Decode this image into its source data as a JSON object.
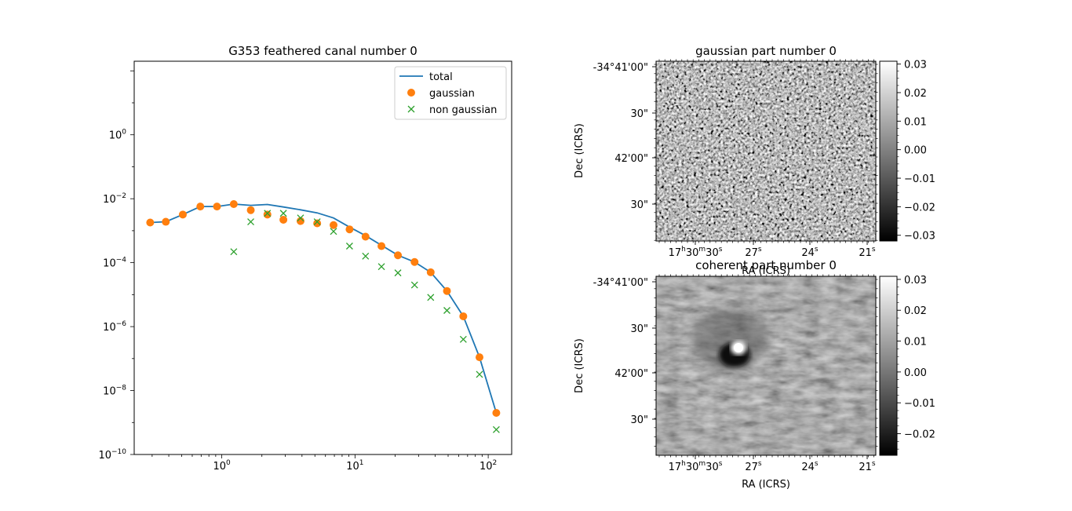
{
  "chart_data": [
    {
      "type": "line",
      "title": "G353 feathered canal number 0",
      "xlabel": "",
      "ylabel": "",
      "xscale": "log",
      "yscale": "log",
      "xlim": [
        0.22,
        150
      ],
      "ylim": [
        1e-10,
        200
      ],
      "x_ticks": [
        {
          "value": 1,
          "base": "10",
          "exp": "0"
        },
        {
          "value": 10,
          "base": "10",
          "exp": "1"
        },
        {
          "value": 100,
          "base": "10",
          "exp": "2"
        }
      ],
      "y_ticks": [
        {
          "value": 1,
          "base": "10",
          "exp": "0"
        },
        {
          "value": 0.01,
          "base": "10",
          "exp": "−2"
        },
        {
          "value": 0.0001,
          "base": "10",
          "exp": "−4"
        },
        {
          "value": 1e-06,
          "base": "10",
          "exp": "−6"
        },
        {
          "value": 1e-08,
          "base": "10",
          "exp": "−8"
        },
        {
          "value": 1e-10,
          "base": "10",
          "exp": "−10"
        }
      ],
      "legend_position": "top-right",
      "series": [
        {
          "name": "total",
          "style": "line",
          "color": "#1f77b4",
          "x": [
            0.29,
            0.38,
            0.51,
            0.69,
            0.92,
            1.23,
            1.65,
            2.2,
            2.9,
            3.9,
            5.2,
            6.9,
            9.1,
            12.0,
            15.8,
            21.0,
            28.0,
            37.0,
            49.0,
            65.0,
            86.0,
            115.0
          ],
          "y": [
            0.0018,
            0.0019,
            0.0032,
            0.0057,
            0.0057,
            0.0068,
            0.0062,
            0.0066,
            0.0055,
            0.0045,
            0.0036,
            0.0025,
            0.0013,
            0.0007,
            0.00035,
            0.00017,
            0.000105,
            5e-05,
            1.3e-05,
            2.1e-06,
            1.1e-07,
            2e-09
          ]
        },
        {
          "name": "gaussian",
          "style": "marker-o",
          "color": "#ff7f0e",
          "x": [
            0.29,
            0.38,
            0.51,
            0.69,
            0.92,
            1.23,
            1.65,
            2.2,
            2.9,
            3.9,
            5.2,
            6.9,
            9.1,
            12.0,
            15.8,
            21.0,
            28.0,
            37.0,
            49.0,
            65.0,
            86.0,
            115.0
          ],
          "y": [
            0.0018,
            0.0019,
            0.0032,
            0.0057,
            0.0057,
            0.0068,
            0.0044,
            0.0032,
            0.0022,
            0.002,
            0.0017,
            0.0015,
            0.0011,
            0.00065,
            0.00033,
            0.00017,
            0.000105,
            5e-05,
            1.3e-05,
            2.1e-06,
            1.1e-07,
            2e-09
          ]
        },
        {
          "name": "non gaussian",
          "style": "marker-x",
          "color": "#2ca02c",
          "x": [
            1.23,
            1.65,
            2.2,
            2.9,
            3.9,
            5.2,
            6.9,
            9.1,
            12.0,
            15.8,
            21.0,
            28.0,
            37.0,
            49.0,
            65.0,
            86.0,
            115.0
          ],
          "y": [
            0.00022,
            0.0019,
            0.0035,
            0.0035,
            0.0025,
            0.0019,
            0.00095,
            0.00033,
            0.00016,
            7.5e-05,
            4.8e-05,
            2e-05,
            8.2e-06,
            3.2e-06,
            4e-07,
            3.2e-08,
            6e-10
          ]
        }
      ]
    },
    {
      "type": "heatmap",
      "title": "gaussian part number 0",
      "xlabel": "RA (ICRS)",
      "ylabel": "Dec (ICRS)",
      "x_ticks": [
        {
          "h": "17",
          "m": "30",
          "s": "30"
        },
        {
          "s": "27"
        },
        {
          "s": "24"
        },
        {
          "s": "21"
        }
      ],
      "y_ticks": [
        "-34°41'00\"",
        "30\"",
        "42'00\"",
        "30\""
      ],
      "colormap": "gray",
      "colorbar_ticks": [
        "0.03",
        "0.02",
        "0.01",
        "0.00",
        "−0.01",
        "−0.02",
        "−0.03"
      ],
      "colorbar_range": [
        -0.032,
        0.031
      ]
    },
    {
      "type": "heatmap",
      "title": "coherent part number 0",
      "xlabel": "RA (ICRS)",
      "ylabel": "Dec (ICRS)",
      "x_ticks": [
        {
          "h": "17",
          "m": "30",
          "s": "30"
        },
        {
          "s": "27"
        },
        {
          "s": "24"
        },
        {
          "s": "21"
        }
      ],
      "y_ticks": [
        "-34°41'00\"",
        "30\"",
        "42'00\"",
        "30\""
      ],
      "colormap": "gray",
      "colorbar_ticks": [
        "0.03",
        "0.02",
        "0.01",
        "0.00",
        "−0.01",
        "−0.02"
      ],
      "colorbar_range": [
        -0.027,
        0.031
      ]
    }
  ]
}
